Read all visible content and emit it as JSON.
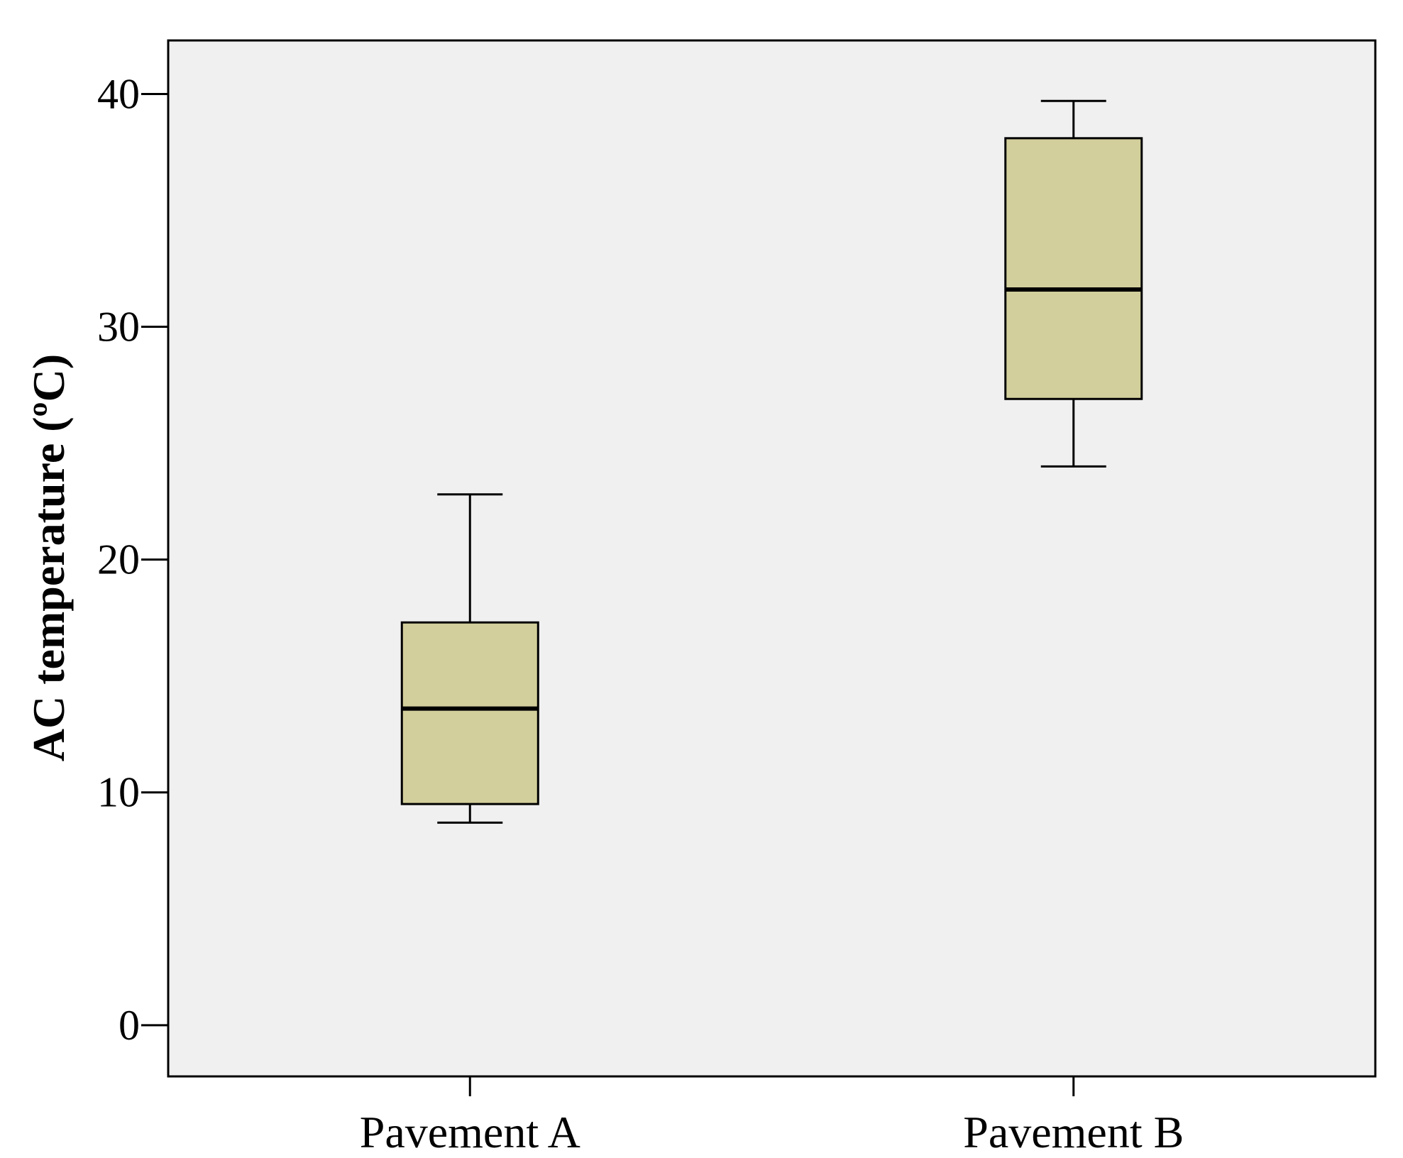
{
  "chart_data": {
    "type": "box",
    "title": "",
    "xlabel": "",
    "ylabel": "AC temperature (ºC)",
    "categories": [
      "Pavement A",
      "Pavement B"
    ],
    "boxes": [
      {
        "name": "Pavement A",
        "min": 8.7,
        "q1": 9.5,
        "median": 13.6,
        "q3": 17.3,
        "max": 22.8
      },
      {
        "name": "Pavement B",
        "min": 24.0,
        "q1": 26.9,
        "median": 31.6,
        "q3": 38.1,
        "max": 39.7
      }
    ],
    "ylim": [
      -2.2,
      42.3
    ],
    "yticks": [
      0,
      10,
      20,
      30,
      40
    ],
    "ytick_labels": [
      "0",
      "10",
      "20",
      "30",
      "40"
    ],
    "grid": false,
    "legend": "none",
    "colors": {
      "box_fill": "#D3CF9C",
      "plot_background": "#F0F0F0",
      "stroke": "#000000"
    }
  }
}
